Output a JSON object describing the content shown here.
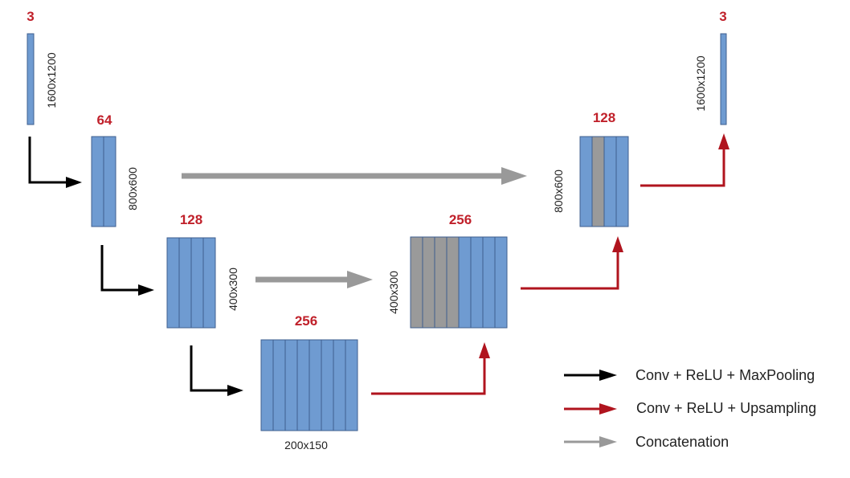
{
  "colors": {
    "block_fill": "#6f9bd1",
    "block_stroke": "#3f5f8f",
    "concat_fill": "#9a9a9a",
    "channel_text": "#c0202a",
    "arrow_black": "#000000",
    "arrow_red": "#b0141e",
    "arrow_gray": "#999999"
  },
  "blocks": [
    {
      "id": "input",
      "channels": "3",
      "size": "1600x1200"
    },
    {
      "id": "enc1",
      "channels": "64",
      "size": "800x600"
    },
    {
      "id": "enc2",
      "channels": "128",
      "size": "400x300"
    },
    {
      "id": "bottle",
      "channels": "256",
      "size": "200x150"
    },
    {
      "id": "dec2",
      "channels": "256",
      "size": "400x300"
    },
    {
      "id": "dec1",
      "channels": "128",
      "size": "800x600"
    },
    {
      "id": "output",
      "channels": "3",
      "size": "1600x1200"
    }
  ],
  "legend": [
    {
      "label": "Conv + ReLU + MaxPooling",
      "color": "#000000"
    },
    {
      "label": "Conv + ReLU + Upsampling",
      "color": "#b0141e"
    },
    {
      "label": "Concatenation",
      "color": "#999999"
    }
  ]
}
